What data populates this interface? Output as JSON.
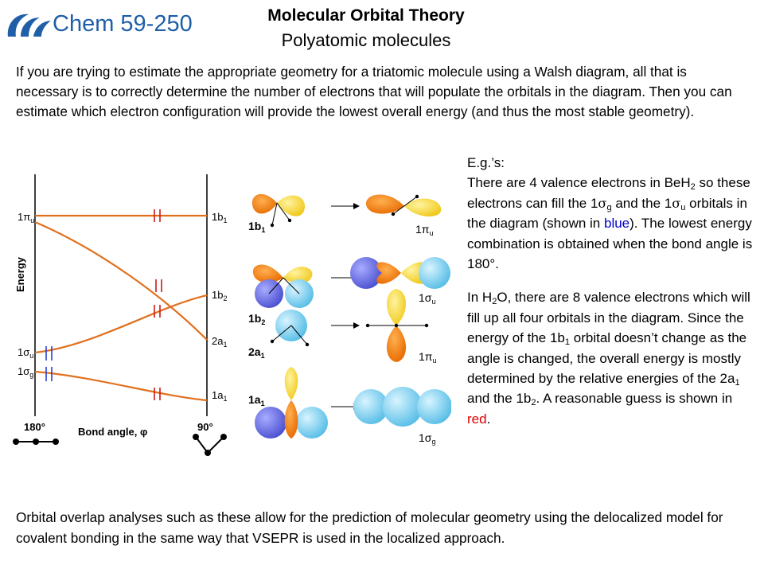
{
  "header": {
    "course": "Chem 59-250",
    "title": "Molecular Orbital Theory",
    "subtitle": "Polyatomic molecules"
  },
  "intro": "If you are trying to estimate the appropriate geometry for a triatomic molecule using a Walsh diagram, all that is necessary is to correctly determine the number of electrons that will populate the orbitals in the diagram.  Then you can estimate which electron configuration will provide the lowest overall energy (and thus the most stable geometry).",
  "diagram": {
    "y_label": "Energy",
    "x_label": "Bond angle, φ",
    "angle_left": "180°",
    "angle_right": "90°",
    "left_labels": {
      "pi_u": {
        "main": "1π",
        "sub": "u"
      },
      "sigma_u": {
        "main": "1σ",
        "sub": "u"
      },
      "sigma_g": {
        "main": "1σ",
        "sub": "g"
      }
    },
    "right_labels": {
      "b1": {
        "main": "1b",
        "sub": "1"
      },
      "b2": {
        "main": "1b",
        "sub": "2"
      },
      "a1_2": {
        "main": "2a",
        "sub": "1"
      },
      "a1_1": {
        "main": "1a",
        "sub": "1"
      }
    },
    "electron_mark": "||",
    "colors": {
      "curve": "#e0701e",
      "blue_marks": "#2a3fd6",
      "red_marks": "#cc1a1a"
    }
  },
  "orbitals": {
    "labels": {
      "b1_left": {
        "main": "1b",
        "sub": "1"
      },
      "pi_u_top": {
        "main": "1π",
        "sub": "u"
      },
      "sigma_u": {
        "main": "1σ",
        "sub": "u"
      },
      "b2": {
        "main": "1b",
        "sub": "2"
      },
      "a1_2": {
        "main": "2a",
        "sub": "1"
      },
      "pi_u_mid": {
        "main": "1π",
        "sub": "u"
      },
      "a1_1": {
        "main": "1a",
        "sub": "1"
      },
      "sigma_g": {
        "main": "1σ",
        "sub": "g"
      }
    },
    "colors": {
      "orange": "#f47a10",
      "yellow": "#f6d32a",
      "purple": "#6b6fe0",
      "cyan": "#7fd3f2"
    }
  },
  "side": {
    "eg": "E.g.’s:",
    "p1": {
      "t1": "There are 4 valence electrons in BeH",
      "s1": "2",
      "t2": " so these electrons can fill the 1",
      "sym1": "σ",
      "s2": "g",
      "t3": " and the 1",
      "sym2": "σ",
      "s3": "u",
      "t4": " orbitals in the diagram (shown in ",
      "blue": "blue",
      "t5": ").  The lowest energy combination is obtained when the bond angle is 180°."
    },
    "p2": {
      "t1": "In H",
      "s1": "2",
      "t2": "O, there are 8 valence electrons which will fill up all four orbitals in the diagram.  Since the energy of the 1b",
      "s2": "1",
      "t3": " orbital doesn’t change as the angle is changed, the overall energy is mostly determined by the relative energies of the 2a",
      "s3": "1",
      "t4": " and the 1b",
      "s4": "2",
      "t5": ".  A reasonable guess is shown in ",
      "red": "red",
      "t6": "."
    }
  },
  "footer": "Orbital overlap analyses such as these allow for the prediction of molecular geometry using the delocalized model for covalent bonding in the same way that VSEPR is used in the localized approach."
}
